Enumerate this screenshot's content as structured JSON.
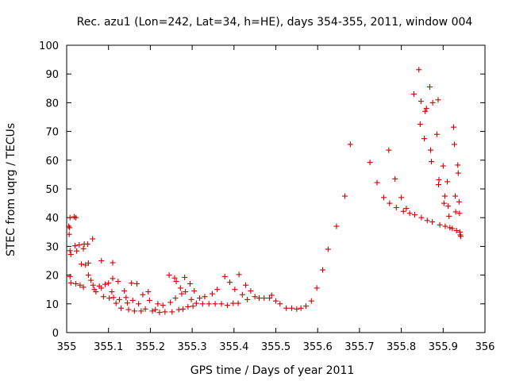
{
  "chart_data": {
    "type": "scatter",
    "title": "Rec. azu1 (Lon=242, Lat=34, h=HE), days 354-355, 2011, window 004",
    "xlabel": "GPS time / Days of year 2011",
    "ylabel": "STEC from uqrg / TECUs",
    "xlim": [
      355,
      356
    ],
    "ylim": [
      0,
      100
    ],
    "xticks": [
      "355",
      "355.1",
      "355.2",
      "355.3",
      "355.4",
      "355.5",
      "355.6",
      "355.7",
      "355.8",
      "355.9",
      "356"
    ],
    "yticks": [
      "0",
      "10",
      "20",
      "30",
      "40",
      "50",
      "60",
      "70",
      "80",
      "90",
      "100"
    ],
    "grid": false,
    "marker": "plus",
    "color": "#cc0000",
    "points": [
      [
        355.008,
        40
      ],
      [
        355.018,
        40.3
      ],
      [
        355.022,
        40
      ],
      [
        355.005,
        37
      ],
      [
        355.007,
        36.5
      ],
      [
        355.006,
        34.2
      ],
      [
        355.008,
        28.5
      ],
      [
        355.01,
        27.2
      ],
      [
        355.02,
        30.2
      ],
      [
        355.024,
        28.4
      ],
      [
        355.03,
        30.5
      ],
      [
        355.04,
        29.2
      ],
      [
        355.042,
        30.8
      ],
      [
        355.05,
        30.8
      ],
      [
        355.062,
        32.6
      ],
      [
        355.035,
        23.8
      ],
      [
        355.045,
        23.5
      ],
      [
        355.052,
        24.2
      ],
      [
        355.083,
        25
      ],
      [
        355.11,
        24.3
      ],
      [
        355.008,
        19.5
      ],
      [
        355.01,
        17.3
      ],
      [
        355.022,
        17
      ],
      [
        355.032,
        16.5
      ],
      [
        355.04,
        15.8
      ],
      [
        355.052,
        20
      ],
      [
        355.058,
        18.2
      ],
      [
        355.063,
        16.5
      ],
      [
        355.066,
        15
      ],
      [
        355.07,
        14.2
      ],
      [
        355.078,
        16.2
      ],
      [
        355.083,
        15.5
      ],
      [
        355.088,
        12.5
      ],
      [
        355.092,
        16.8
      ],
      [
        355.1,
        17.2
      ],
      [
        355.102,
        12
      ],
      [
        355.108,
        14.2
      ],
      [
        355.11,
        18.8
      ],
      [
        355.112,
        12.2
      ],
      [
        355.118,
        10.2
      ],
      [
        355.123,
        17.8
      ],
      [
        355.126,
        11.5
      ],
      [
        355.13,
        8.5
      ],
      [
        355.138,
        14.5
      ],
      [
        355.142,
        12.2
      ],
      [
        355.145,
        10.3
      ],
      [
        355.148,
        8
      ],
      [
        355.155,
        17.2
      ],
      [
        355.158,
        11.2
      ],
      [
        355.162,
        7.5
      ],
      [
        355.168,
        17
      ],
      [
        355.172,
        10
      ],
      [
        355.178,
        7.5
      ],
      [
        355.182,
        13.2
      ],
      [
        355.188,
        8.2
      ],
      [
        355.195,
        14.2
      ],
      [
        355.198,
        11.2
      ],
      [
        355.205,
        7.5
      ],
      [
        355.212,
        8
      ],
      [
        355.218,
        10
      ],
      [
        355.222,
        7
      ],
      [
        355.23,
        9.5
      ],
      [
        355.235,
        7.2
      ],
      [
        355.245,
        20
      ],
      [
        355.248,
        10.5
      ],
      [
        355.252,
        7.2
      ],
      [
        355.258,
        19
      ],
      [
        355.26,
        12
      ],
      [
        355.262,
        17.8
      ],
      [
        355.268,
        8
      ],
      [
        355.272,
        15.5
      ],
      [
        355.275,
        13.5
      ],
      [
        355.278,
        8.2
      ],
      [
        355.282,
        19.2
      ],
      [
        355.284,
        14.2
      ],
      [
        355.29,
        9
      ],
      [
        355.295,
        17
      ],
      [
        355.298,
        11.5
      ],
      [
        355.302,
        9.2
      ],
      [
        355.305,
        14.5
      ],
      [
        355.31,
        10.2
      ],
      [
        355.318,
        12
      ],
      [
        355.325,
        10
      ],
      [
        355.33,
        12.5
      ],
      [
        355.34,
        10
      ],
      [
        355.348,
        13.5
      ],
      [
        355.355,
        10
      ],
      [
        355.36,
        15
      ],
      [
        355.37,
        10
      ],
      [
        355.378,
        19.5
      ],
      [
        355.384,
        9.5
      ],
      [
        355.39,
        17.5
      ],
      [
        355.398,
        10.2
      ],
      [
        355.402,
        15
      ],
      [
        355.41,
        10.2
      ],
      [
        355.412,
        20.2
      ],
      [
        355.42,
        13.2
      ],
      [
        355.428,
        16.5
      ],
      [
        355.432,
        11.5
      ],
      [
        355.44,
        14.5
      ],
      [
        355.45,
        12.5
      ],
      [
        355.46,
        12
      ],
      [
        355.472,
        12
      ],
      [
        355.485,
        12
      ],
      [
        355.49,
        13
      ],
      [
        355.5,
        11
      ],
      [
        355.51,
        10
      ],
      [
        355.525,
        8.5
      ],
      [
        355.538,
        8.5
      ],
      [
        355.55,
        8.2
      ],
      [
        355.56,
        8.5
      ],
      [
        355.572,
        9.2
      ],
      [
        355.585,
        11
      ],
      [
        355.598,
        15.5
      ],
      [
        355.612,
        21.8
      ],
      [
        355.625,
        29
      ],
      [
        355.645,
        37
      ],
      [
        355.665,
        47.5
      ],
      [
        355.678,
        65.5
      ],
      [
        355.725,
        59.2
      ],
      [
        355.742,
        52.2
      ],
      [
        355.758,
        47
      ],
      [
        355.77,
        63.5
      ],
      [
        355.772,
        45
      ],
      [
        355.785,
        53.5
      ],
      [
        355.788,
        43.5
      ],
      [
        355.8,
        47
      ],
      [
        355.805,
        42.2
      ],
      [
        355.812,
        43.2
      ],
      [
        355.82,
        41.5
      ],
      [
        355.83,
        83
      ],
      [
        355.832,
        41
      ],
      [
        355.842,
        91.5
      ],
      [
        355.845,
        72.5
      ],
      [
        355.847,
        80.5
      ],
      [
        355.848,
        40
      ],
      [
        355.855,
        67.5
      ],
      [
        355.857,
        77
      ],
      [
        355.86,
        78
      ],
      [
        355.862,
        39
      ],
      [
        355.868,
        85.5
      ],
      [
        355.87,
        63.5
      ],
      [
        355.872,
        59.5
      ],
      [
        355.874,
        38.5
      ],
      [
        355.875,
        80
      ],
      [
        355.885,
        69
      ],
      [
        355.888,
        81
      ],
      [
        355.889,
        51.5
      ],
      [
        355.89,
        53.2
      ],
      [
        355.892,
        37.5
      ],
      [
        355.9,
        58
      ],
      [
        355.902,
        45
      ],
      [
        355.904,
        47.5
      ],
      [
        355.905,
        37
      ],
      [
        355.91,
        52.5
      ],
      [
        355.912,
        44
      ],
      [
        355.914,
        40.5
      ],
      [
        355.916,
        36.5
      ],
      [
        355.922,
        36.2
      ],
      [
        355.925,
        71.5
      ],
      [
        355.927,
        65.5
      ],
      [
        355.929,
        47.5
      ],
      [
        355.93,
        42
      ],
      [
        355.932,
        35.5
      ],
      [
        355.935,
        58.3
      ],
      [
        355.936,
        55.5
      ],
      [
        355.938,
        45.5
      ],
      [
        355.939,
        41.5
      ],
      [
        355.94,
        35
      ],
      [
        355.941,
        34
      ],
      [
        355.942,
        33.5
      ]
    ]
  }
}
